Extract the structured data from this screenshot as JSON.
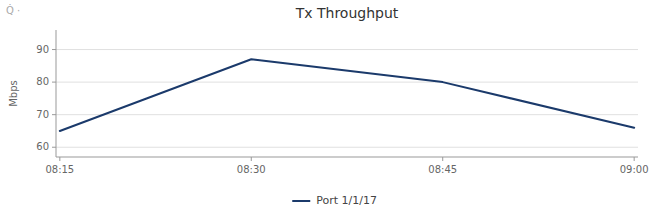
{
  "chart_data": {
    "type": "line",
    "title": "Tx Throughput",
    "y_label": "Mbps",
    "categories": [
      "08:15",
      "08:30",
      "08:45",
      "09:00"
    ],
    "series": [
      {
        "name": "Port 1/1/17",
        "color": "#1b3a6b",
        "values": [
          65,
          87,
          80,
          66
        ]
      }
    ],
    "ylim": [
      57,
      96
    ],
    "yticks": [
      60,
      70,
      80,
      90
    ],
    "grid": true,
    "legend": "bottom",
    "annotations": [
      "Q̇ ·"
    ]
  }
}
